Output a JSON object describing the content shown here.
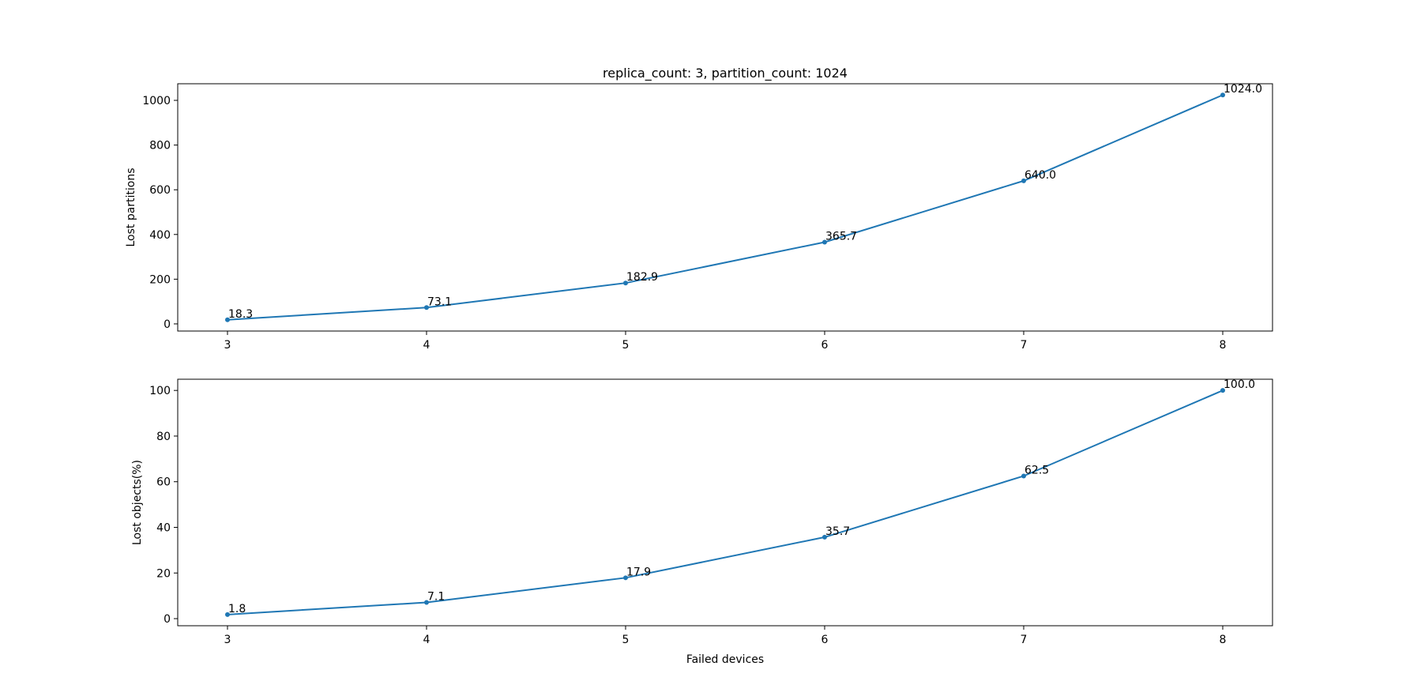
{
  "chart_data": [
    {
      "type": "line",
      "title": "replica_count: 3,  partition_count: 1024",
      "ylabel": "Lost partitions",
      "x": [
        3,
        4,
        5,
        6,
        7,
        8
      ],
      "values": [
        18.3,
        73.1,
        182.9,
        365.7,
        640.0,
        1024.0
      ],
      "value_labels": [
        "18.3",
        "73.1",
        "182.9",
        "365.7",
        "640.0",
        "1024.0"
      ],
      "color": "#1f77b4",
      "xlim": [
        2.75,
        8.25
      ],
      "xticks": [
        3,
        4,
        5,
        6,
        7,
        8
      ],
      "ylim": [
        -32.0,
        1074.3
      ],
      "yticks": [
        0,
        200,
        400,
        600,
        800,
        1000
      ]
    },
    {
      "type": "line",
      "ylabel": "Lost objects(%)",
      "xlabel": "Failed devices",
      "x": [
        3,
        4,
        5,
        6,
        7,
        8
      ],
      "values": [
        1.8,
        7.1,
        17.9,
        35.7,
        62.5,
        100.0
      ],
      "value_labels": [
        "1.8",
        "7.1",
        "17.9",
        "35.7",
        "62.5",
        "100.0"
      ],
      "color": "#1f77b4",
      "xlim": [
        2.75,
        8.25
      ],
      "xticks": [
        3,
        4,
        5,
        6,
        7,
        8
      ],
      "ylim": [
        -3.11,
        104.91
      ],
      "yticks": [
        0,
        20,
        40,
        60,
        80,
        100
      ]
    }
  ]
}
